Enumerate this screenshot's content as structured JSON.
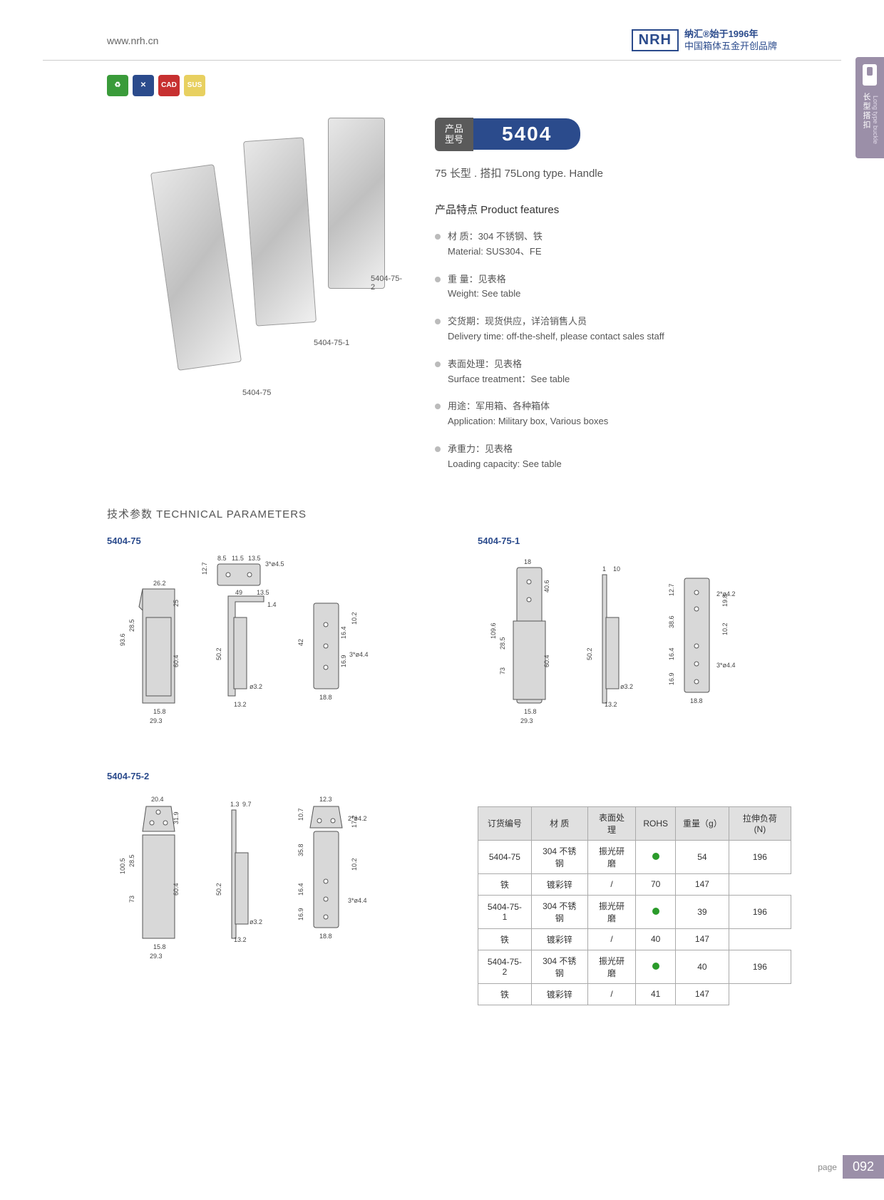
{
  "header": {
    "url": "www.nrh.cn",
    "brand_logo": "NRH",
    "brand_line1": "纳汇®始于1996年",
    "brand_line2": "中国箱体五金开创品牌"
  },
  "side_tab": {
    "cn": "长型搭扣",
    "en": "Long type buckle"
  },
  "icons": {
    "cad": "CAD",
    "sus": "SUS"
  },
  "model": {
    "label": "产品\n型号",
    "number": "5404",
    "subtitle": "75 长型 . 搭扣   75Long type. Handle"
  },
  "product_labels": {
    "p1": "5404-75",
    "p2": "5404-75-1",
    "p3": "5404-75-2"
  },
  "features": {
    "title": "产品特点 Product features",
    "items": [
      {
        "cn": "材 质：304 不锈钢、铁",
        "en": "Material: SUS304、FE"
      },
      {
        "cn": "重 量：见表格",
        "en": "Weight: See table"
      },
      {
        "cn": "交货期：现货供应，详洽销售人员",
        "en": "Delivery time: off-the-shelf, please contact sales staff"
      },
      {
        "cn": "表面处理：见表格",
        "en": "Surface treatment：See table"
      },
      {
        "cn": "用途：军用箱、各种箱体",
        "en": "Application: Military box, Various boxes"
      },
      {
        "cn": "承重力：见表格",
        "en": "Loading capacity: See table"
      }
    ]
  },
  "tech": {
    "title": "技术参数  TECHNICAL PARAMETERS"
  },
  "diagrams": {
    "d1": {
      "label": "5404-75",
      "dims": [
        "26.2",
        "93.6",
        "28.5",
        "25",
        "60.4",
        "15.8",
        "29.3",
        "8.5",
        "11.5",
        "13.5",
        "12.7",
        "7",
        "6.5",
        "49",
        "13.5",
        "1.4",
        "3",
        "50.2",
        "ø3.2",
        "13.2",
        "3*ø4.5",
        "42",
        "16.4",
        "16.9",
        "10.2",
        "3*ø4.4",
        "18.8"
      ]
    },
    "d2": {
      "label": "5404-75-1",
      "dims": [
        "18",
        "109.6",
        "28.5",
        "73",
        "40.6",
        "60.4",
        "15.8",
        "29.3",
        "1",
        "10",
        "50.2",
        "ø3.2",
        "13.2",
        "12.7",
        "38.6",
        "16.4",
        "16.9",
        "2*ø4.2",
        "19.8",
        "10.2",
        "3*ø4.4",
        "18.8"
      ]
    },
    "d3": {
      "label": "5404-75-2",
      "dims": [
        "20.4",
        "100.5",
        "28.5",
        "73",
        "31.9",
        "60.4",
        "15.8",
        "29.3",
        "1.3",
        "9.7",
        "50.2",
        "ø3.2",
        "13.2",
        "12.3",
        "10.7",
        "35.8",
        "16.4",
        "16.9",
        "2*ø4.2",
        "17.2",
        "10.2",
        "3*ø4.4",
        "18.8"
      ]
    }
  },
  "table": {
    "headers": [
      "订货编号",
      "材 质",
      "表面处理",
      "ROHS",
      "重量（g）",
      "拉伸负荷 (N)"
    ],
    "rows": [
      {
        "code": "5404-75",
        "sub": [
          {
            "mat": "304 不锈钢",
            "surf": "振光研磨",
            "rohs": "dot",
            "wt": "54",
            "load": "196"
          },
          {
            "mat": "铁",
            "surf": "镀彩锌",
            "rohs": "/",
            "wt": "70",
            "load": "147"
          }
        ]
      },
      {
        "code": "5404-75-1",
        "sub": [
          {
            "mat": "304 不锈钢",
            "surf": "振光研磨",
            "rohs": "dot",
            "wt": "39",
            "load": "196"
          },
          {
            "mat": "铁",
            "surf": "镀彩锌",
            "rohs": "/",
            "wt": "40",
            "load": "147"
          }
        ]
      },
      {
        "code": "5404-75-2",
        "sub": [
          {
            "mat": "304 不锈钢",
            "surf": "振光研磨",
            "rohs": "dot",
            "wt": "40",
            "load": "196"
          },
          {
            "mat": "铁",
            "surf": "镀彩锌",
            "rohs": "/",
            "wt": "41",
            "load": "147"
          }
        ]
      }
    ]
  },
  "footer": {
    "label": "page",
    "num": "092"
  }
}
